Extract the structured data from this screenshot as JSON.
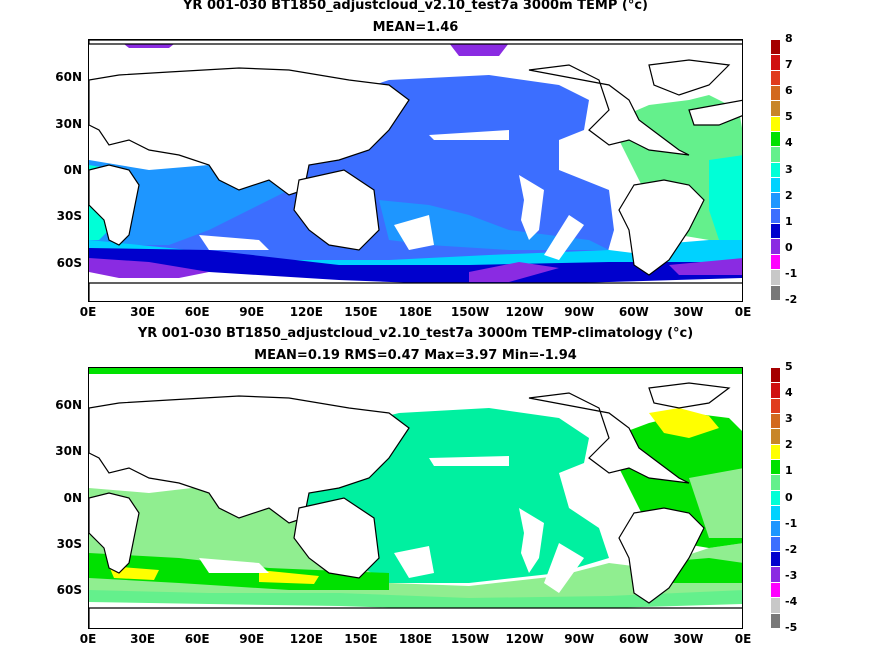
{
  "panel1": {
    "title_line1": "YR 001-030 BT1850_adjustcloud_v2.10_test7a 3000m TEMP (°c)",
    "title_line2": "MEAN=1.46",
    "colorbar_labels": [
      "8",
      "7",
      "6",
      "5",
      "4",
      "3",
      "2",
      "1",
      "0",
      "-1",
      "-2"
    ],
    "colorbar_colors": [
      "#a50000",
      "#d01010",
      "#e03c1c",
      "#d2691e",
      "#c88628",
      "#ffff00",
      "#00e100",
      "#64f08c",
      "#00ffd7",
      "#00d2ff",
      "#1e96ff",
      "#3c6eff",
      "#0000cd",
      "#8a2be2",
      "#ff00ff",
      "#c8c8c8",
      "#787878"
    ],
    "value_range": [
      -2,
      8
    ]
  },
  "panel2": {
    "title_line1": "YR 001-030 BT1850_adjustcloud_v2.10_test7a 3000m TEMP-climatology (°c)",
    "title_line2": "MEAN=0.19   RMS=0.47   Max=3.97   Min=-1.94",
    "colorbar_labels": [
      "5",
      "4",
      "3",
      "2",
      "1",
      "0",
      "-1",
      "-2",
      "-3",
      "-4",
      "-5"
    ],
    "colorbar_colors": [
      "#a50000",
      "#d01010",
      "#e03c1c",
      "#d2691e",
      "#c88628",
      "#ffff00",
      "#00e100",
      "#64f08c",
      "#00ffd7",
      "#00d2ff",
      "#1e96ff",
      "#3c6eff",
      "#0000cd",
      "#8a2be2",
      "#ff00ff",
      "#c8c8c8",
      "#787878"
    ],
    "value_range": [
      -5,
      5
    ]
  },
  "lat_labels": [
    "60N",
    "30N",
    "0N",
    "30S",
    "60S"
  ],
  "lon_labels": [
    "0E",
    "30E",
    "60E",
    "90E",
    "120E",
    "150E",
    "180E",
    "150W",
    "120W",
    "90W",
    "60W",
    "30W",
    "0E"
  ],
  "colors": {
    "panel1_pacific": "#3c6eff",
    "panel1_indian": "#1e96ff",
    "panel1_atlantic": "#64f08c",
    "panel2_pacific": "#00f0a0",
    "panel2_other": "#90ee90",
    "panel2_atlantic": "#00e100"
  }
}
